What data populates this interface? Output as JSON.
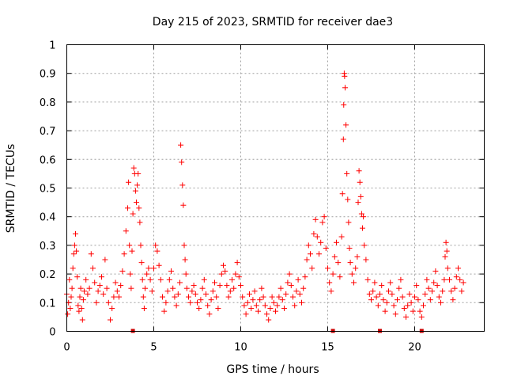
{
  "chart_data": {
    "type": "scatter",
    "title": "Day 215 of 2023, SRMTID for receiver dae3",
    "xlabel": "GPS time / hours",
    "ylabel": "SRMTID / TECUs",
    "xlim": [
      0,
      24
    ],
    "ylim": [
      0,
      1
    ],
    "xticks": [
      0,
      5,
      10,
      15,
      20
    ],
    "xtick_labels": [
      "0",
      "5",
      "10",
      "15",
      "20"
    ],
    "yticks": [
      0,
      0.1,
      0.2,
      0.3,
      0.4,
      0.5,
      0.6,
      0.7,
      0.8,
      0.9,
      1
    ],
    "ytick_labels": [
      "0",
      "0.1",
      "0.2",
      "0.3",
      "0.4",
      "0.5",
      "0.6",
      "0.7",
      "0.8",
      "0.9",
      "1"
    ],
    "grid": true,
    "marker": "+",
    "color": "#ff0000",
    "marker_color": "#cc0000",
    "baseline_markers_x": [
      3.8,
      15.3,
      18.0,
      20.4
    ],
    "series": [
      {
        "name": "SRMTID",
        "points": [
          [
            0.0,
            0.13
          ],
          [
            0.05,
            0.06
          ],
          [
            0.1,
            0.1
          ],
          [
            0.15,
            0.18
          ],
          [
            0.2,
            0.08
          ],
          [
            0.25,
            0.12
          ],
          [
            0.3,
            0.15
          ],
          [
            0.35,
            0.22
          ],
          [
            0.4,
            0.27
          ],
          [
            0.45,
            0.3
          ],
          [
            0.5,
            0.34
          ],
          [
            0.55,
            0.28
          ],
          [
            0.6,
            0.19
          ],
          [
            0.65,
            0.09
          ],
          [
            0.7,
            0.07
          ],
          [
            0.75,
            0.12
          ],
          [
            0.8,
            0.15
          ],
          [
            0.85,
            0.08
          ],
          [
            0.9,
            0.04
          ],
          [
            0.95,
            0.11
          ],
          [
            1.0,
            0.14
          ],
          [
            1.1,
            0.18
          ],
          [
            1.2,
            0.13
          ],
          [
            1.3,
            0.15
          ],
          [
            1.4,
            0.27
          ],
          [
            1.5,
            0.22
          ],
          [
            1.6,
            0.17
          ],
          [
            1.7,
            0.1
          ],
          [
            1.8,
            0.14
          ],
          [
            1.9,
            0.16
          ],
          [
            2.0,
            0.19
          ],
          [
            2.1,
            0.13
          ],
          [
            2.2,
            0.25
          ],
          [
            2.3,
            0.15
          ],
          [
            2.4,
            0.1
          ],
          [
            2.5,
            0.04
          ],
          [
            2.6,
            0.08
          ],
          [
            2.7,
            0.12
          ],
          [
            2.8,
            0.17
          ],
          [
            2.9,
            0.14
          ],
          [
            3.0,
            0.12
          ],
          [
            3.1,
            0.16
          ],
          [
            3.2,
            0.21
          ],
          [
            3.3,
            0.27
          ],
          [
            3.4,
            0.35
          ],
          [
            3.5,
            0.43
          ],
          [
            3.55,
            0.52
          ],
          [
            3.6,
            0.3
          ],
          [
            3.65,
            0.2
          ],
          [
            3.7,
            0.15
          ],
          [
            3.75,
            0.28
          ],
          [
            3.8,
            0.41
          ],
          [
            3.85,
            0.57
          ],
          [
            3.9,
            0.55
          ],
          [
            3.95,
            0.49
          ],
          [
            4.0,
            0.45
          ],
          [
            4.05,
            0.51
          ],
          [
            4.1,
            0.55
          ],
          [
            4.15,
            0.43
          ],
          [
            4.2,
            0.38
          ],
          [
            4.25,
            0.3
          ],
          [
            4.3,
            0.24
          ],
          [
            4.35,
            0.18
          ],
          [
            4.4,
            0.12
          ],
          [
            4.45,
            0.08
          ],
          [
            4.5,
            0.15
          ],
          [
            4.6,
            0.2
          ],
          [
            4.7,
            0.22
          ],
          [
            4.8,
            0.18
          ],
          [
            4.9,
            0.14
          ],
          [
            5.0,
            0.22
          ],
          [
            5.1,
            0.3
          ],
          [
            5.2,
            0.28
          ],
          [
            5.3,
            0.23
          ],
          [
            5.4,
            0.18
          ],
          [
            5.5,
            0.12
          ],
          [
            5.6,
            0.07
          ],
          [
            5.7,
            0.1
          ],
          [
            5.8,
            0.14
          ],
          [
            5.9,
            0.18
          ],
          [
            6.0,
            0.21
          ],
          [
            6.1,
            0.15
          ],
          [
            6.2,
            0.12
          ],
          [
            6.3,
            0.09
          ],
          [
            6.4,
            0.13
          ],
          [
            6.5,
            0.17
          ],
          [
            6.55,
            0.65
          ],
          [
            6.6,
            0.59
          ],
          [
            6.65,
            0.51
          ],
          [
            6.7,
            0.44
          ],
          [
            6.75,
            0.3
          ],
          [
            6.8,
            0.25
          ],
          [
            6.85,
            0.2
          ],
          [
            6.9,
            0.15
          ],
          [
            7.0,
            0.12
          ],
          [
            7.1,
            0.1
          ],
          [
            7.2,
            0.14
          ],
          [
            7.3,
            0.16
          ],
          [
            7.4,
            0.13
          ],
          [
            7.5,
            0.1
          ],
          [
            7.6,
            0.08
          ],
          [
            7.7,
            0.11
          ],
          [
            7.8,
            0.15
          ],
          [
            7.9,
            0.18
          ],
          [
            8.0,
            0.13
          ],
          [
            8.1,
            0.09
          ],
          [
            8.2,
            0.06
          ],
          [
            8.3,
            0.11
          ],
          [
            8.4,
            0.14
          ],
          [
            8.5,
            0.17
          ],
          [
            8.6,
            0.12
          ],
          [
            8.7,
            0.08
          ],
          [
            8.8,
            0.16
          ],
          [
            8.9,
            0.2
          ],
          [
            9.0,
            0.23
          ],
          [
            9.1,
            0.21
          ],
          [
            9.2,
            0.16
          ],
          [
            9.3,
            0.12
          ],
          [
            9.4,
            0.14
          ],
          [
            9.5,
            0.18
          ],
          [
            9.6,
            0.15
          ],
          [
            9.7,
            0.2
          ],
          [
            9.8,
            0.24
          ],
          [
            9.9,
            0.19
          ],
          [
            10.0,
            0.16
          ],
          [
            10.1,
            0.12
          ],
          [
            10.2,
            0.09
          ],
          [
            10.3,
            0.06
          ],
          [
            10.4,
            0.1
          ],
          [
            10.5,
            0.13
          ],
          [
            10.6,
            0.08
          ],
          [
            10.7,
            0.11
          ],
          [
            10.8,
            0.14
          ],
          [
            10.9,
            0.09
          ],
          [
            11.0,
            0.07
          ],
          [
            11.1,
            0.11
          ],
          [
            11.2,
            0.15
          ],
          [
            11.3,
            0.12
          ],
          [
            11.4,
            0.09
          ],
          [
            11.5,
            0.06
          ],
          [
            11.6,
            0.04
          ],
          [
            11.7,
            0.08
          ],
          [
            11.8,
            0.12
          ],
          [
            11.9,
            0.1
          ],
          [
            12.0,
            0.07
          ],
          [
            12.1,
            0.09
          ],
          [
            12.2,
            0.12
          ],
          [
            12.3,
            0.15
          ],
          [
            12.4,
            0.11
          ],
          [
            12.5,
            0.08
          ],
          [
            12.6,
            0.13
          ],
          [
            12.7,
            0.17
          ],
          [
            12.8,
            0.2
          ],
          [
            12.9,
            0.16
          ],
          [
            13.0,
            0.12
          ],
          [
            13.1,
            0.09
          ],
          [
            13.2,
            0.14
          ],
          [
            13.3,
            0.18
          ],
          [
            13.4,
            0.13
          ],
          [
            13.5,
            0.1
          ],
          [
            13.6,
            0.15
          ],
          [
            13.7,
            0.19
          ],
          [
            13.8,
            0.25
          ],
          [
            13.9,
            0.3
          ],
          [
            14.0,
            0.27
          ],
          [
            14.1,
            0.22
          ],
          [
            14.2,
            0.34
          ],
          [
            14.3,
            0.39
          ],
          [
            14.4,
            0.33
          ],
          [
            14.5,
            0.27
          ],
          [
            14.6,
            0.31
          ],
          [
            14.7,
            0.38
          ],
          [
            14.8,
            0.4
          ],
          [
            14.9,
            0.29
          ],
          [
            15.0,
            0.22
          ],
          [
            15.1,
            0.17
          ],
          [
            15.2,
            0.14
          ],
          [
            15.3,
            0.2
          ],
          [
            15.4,
            0.26
          ],
          [
            15.5,
            0.31
          ],
          [
            15.6,
            0.24
          ],
          [
            15.7,
            0.19
          ],
          [
            15.8,
            0.33
          ],
          [
            15.85,
            0.48
          ],
          [
            15.9,
            0.67
          ],
          [
            15.92,
            0.79
          ],
          [
            15.95,
            0.9
          ],
          [
            15.97,
            0.89
          ],
          [
            16.0,
            0.85
          ],
          [
            16.05,
            0.72
          ],
          [
            16.1,
            0.55
          ],
          [
            16.15,
            0.46
          ],
          [
            16.2,
            0.38
          ],
          [
            16.25,
            0.29
          ],
          [
            16.3,
            0.24
          ],
          [
            16.4,
            0.2
          ],
          [
            16.5,
            0.17
          ],
          [
            16.6,
            0.22
          ],
          [
            16.7,
            0.26
          ],
          [
            16.75,
            0.45
          ],
          [
            16.8,
            0.56
          ],
          [
            16.85,
            0.52
          ],
          [
            16.9,
            0.47
          ],
          [
            16.95,
            0.41
          ],
          [
            17.0,
            0.36
          ],
          [
            17.05,
            0.4
          ],
          [
            17.1,
            0.3
          ],
          [
            17.2,
            0.25
          ],
          [
            17.3,
            0.18
          ],
          [
            17.4,
            0.13
          ],
          [
            17.5,
            0.11
          ],
          [
            17.6,
            0.14
          ],
          [
            17.7,
            0.17
          ],
          [
            17.8,
            0.12
          ],
          [
            17.9,
            0.09
          ],
          [
            18.0,
            0.13
          ],
          [
            18.1,
            0.16
          ],
          [
            18.2,
            0.11
          ],
          [
            18.3,
            0.07
          ],
          [
            18.4,
            0.1
          ],
          [
            18.5,
            0.14
          ],
          [
            18.6,
            0.17
          ],
          [
            18.7,
            0.13
          ],
          [
            18.8,
            0.09
          ],
          [
            18.9,
            0.06
          ],
          [
            19.0,
            0.11
          ],
          [
            19.1,
            0.15
          ],
          [
            19.2,
            0.18
          ],
          [
            19.3,
            0.12
          ],
          [
            19.4,
            0.08
          ],
          [
            19.5,
            0.05
          ],
          [
            19.6,
            0.09
          ],
          [
            19.7,
            0.13
          ],
          [
            19.8,
            0.1
          ],
          [
            19.9,
            0.07
          ],
          [
            20.0,
            0.12
          ],
          [
            20.1,
            0.16
          ],
          [
            20.2,
            0.11
          ],
          [
            20.3,
            0.07
          ],
          [
            20.4,
            0.05
          ],
          [
            20.5,
            0.09
          ],
          [
            20.6,
            0.13
          ],
          [
            20.7,
            0.18
          ],
          [
            20.8,
            0.15
          ],
          [
            20.9,
            0.11
          ],
          [
            21.0,
            0.14
          ],
          [
            21.1,
            0.17
          ],
          [
            21.2,
            0.21
          ],
          [
            21.3,
            0.16
          ],
          [
            21.4,
            0.12
          ],
          [
            21.5,
            0.1
          ],
          [
            21.6,
            0.14
          ],
          [
            21.7,
            0.18
          ],
          [
            21.75,
            0.26
          ],
          [
            21.8,
            0.31
          ],
          [
            21.85,
            0.28
          ],
          [
            21.9,
            0.22
          ],
          [
            22.0,
            0.18
          ],
          [
            22.1,
            0.14
          ],
          [
            22.2,
            0.11
          ],
          [
            22.3,
            0.15
          ],
          [
            22.4,
            0.19
          ],
          [
            22.5,
            0.22
          ],
          [
            22.6,
            0.18
          ],
          [
            22.7,
            0.14
          ],
          [
            22.8,
            0.17
          ]
        ]
      }
    ]
  }
}
